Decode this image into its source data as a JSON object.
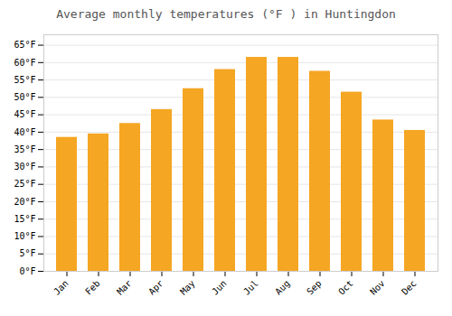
{
  "chart_data": {
    "type": "bar",
    "title": "Average monthly temperatures (°F ) in Huntingdon",
    "categories": [
      "Jan",
      "Feb",
      "Mar",
      "Apr",
      "May",
      "Jun",
      "Jul",
      "Aug",
      "Sep",
      "Oct",
      "Nov",
      "Dec"
    ],
    "values": [
      38.5,
      39.5,
      42.5,
      46.5,
      52.5,
      58.0,
      61.5,
      61.5,
      57.5,
      51.5,
      43.5,
      40.5
    ],
    "color": "#F5A623",
    "ylim": [
      0,
      68
    ],
    "yticks": [
      {
        "value": 0,
        "label": "0°F"
      },
      {
        "value": 5,
        "label": "5°F"
      },
      {
        "value": 10,
        "label": "10°F"
      },
      {
        "value": 15,
        "label": "15°F"
      },
      {
        "value": 20,
        "label": "20°F"
      },
      {
        "value": 25,
        "label": "25°F"
      },
      {
        "value": 30,
        "label": "30°F"
      },
      {
        "value": 35,
        "label": "35°F"
      },
      {
        "value": 40,
        "label": "40°F"
      },
      {
        "value": 45,
        "label": "45°F"
      },
      {
        "value": 50,
        "label": "50°F"
      },
      {
        "value": 55,
        "label": "55°F"
      },
      {
        "value": 60,
        "label": "60°F"
      },
      {
        "value": 65,
        "label": "65°F"
      }
    ],
    "grid": true
  }
}
